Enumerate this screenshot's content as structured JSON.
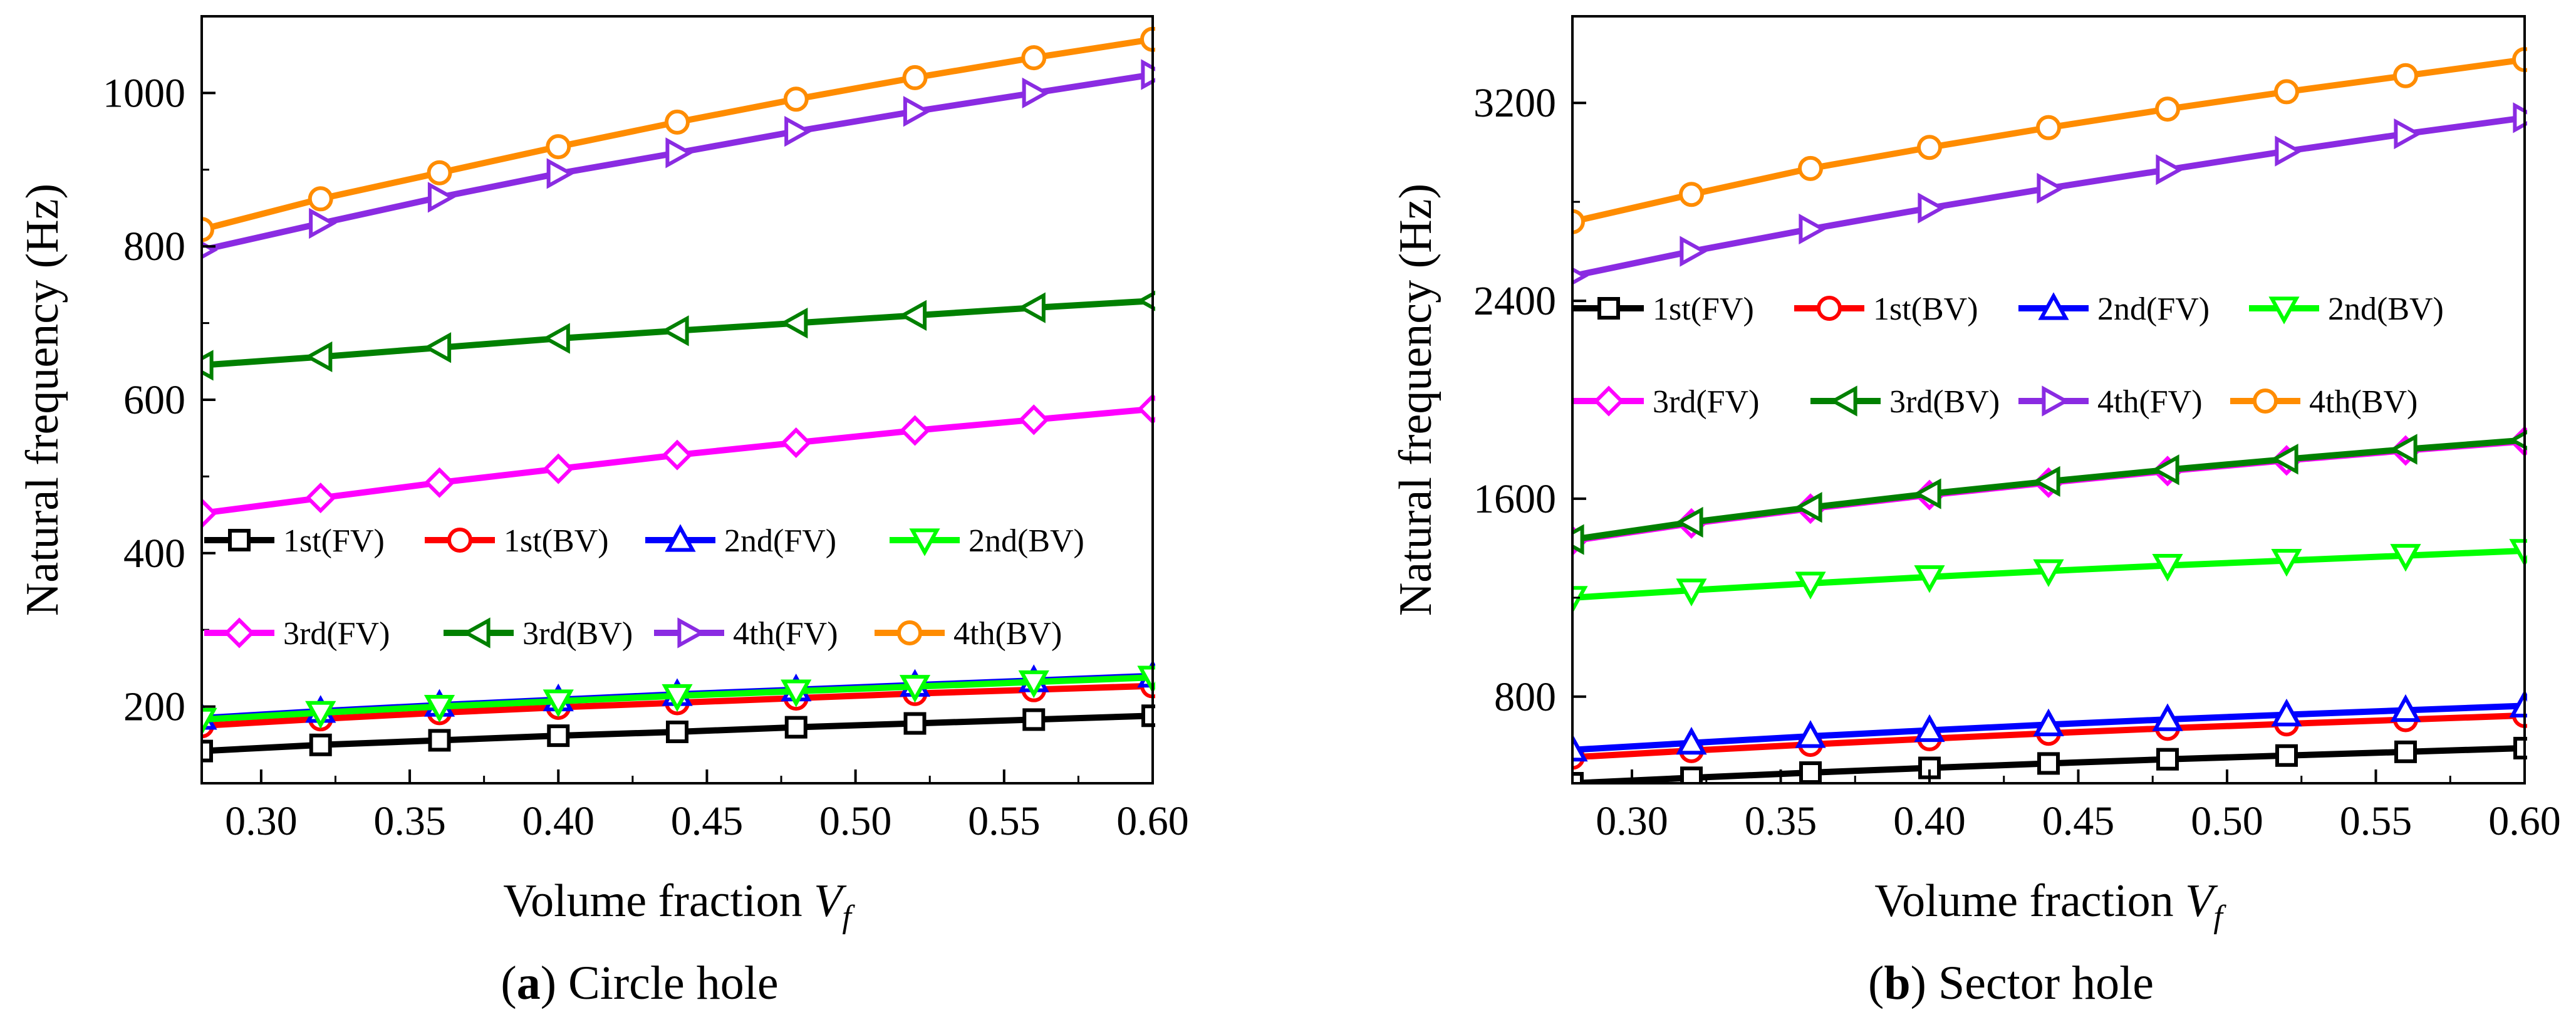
{
  "chart_data": [
    {
      "type": "line",
      "panel": "a",
      "caption_label": "a",
      "caption_text": " Circle hole",
      "xlabel": "Volume fraction ",
      "xlabel_var": "V",
      "xlabel_sub": "f",
      "ylabel": "Natural frequency (Hz)",
      "xlim": [
        0.28,
        0.6
      ],
      "ylim": [
        100,
        1100
      ],
      "xticks": [
        0.3,
        0.35,
        0.4,
        0.45,
        0.5,
        0.55,
        0.6
      ],
      "xtick_labels": [
        "0.30",
        "0.35",
        "0.40",
        "0.45",
        "0.50",
        "0.55",
        "0.60"
      ],
      "yticks": [
        200,
        400,
        600,
        800,
        1000
      ],
      "ytick_labels": [
        "200",
        "400",
        "600",
        "800",
        "1000"
      ],
      "legend_position": "center-bottom",
      "x": [
        0.28,
        0.32,
        0.36,
        0.4,
        0.44,
        0.48,
        0.52,
        0.56,
        0.6
      ],
      "series": [
        {
          "name": "1st(FV)",
          "color": "#000000",
          "marker": "square",
          "values": [
            142,
            150,
            156,
            162,
            167,
            173,
            178,
            183,
            188
          ]
        },
        {
          "name": "1st(BV)",
          "color": "#ff0000",
          "marker": "circle",
          "values": [
            175,
            184,
            192,
            199,
            205,
            211,
            217,
            222,
            227
          ]
        },
        {
          "name": "2nd(FV)",
          "color": "#0000ff",
          "marker": "triangle-up",
          "values": [
            185,
            194,
            202,
            209,
            216,
            222,
            228,
            234,
            240
          ]
        },
        {
          "name": "2nd(BV)",
          "color": "#00ff00",
          "marker": "triangle-down",
          "values": [
            183,
            192,
            200,
            207,
            214,
            220,
            226,
            232,
            238
          ]
        },
        {
          "name": "3rd(FV)",
          "color": "#ff00ff",
          "marker": "diamond",
          "values": [
            452,
            472,
            492,
            510,
            528,
            544,
            560,
            574,
            588
          ]
        },
        {
          "name": "3rd(BV)",
          "color": "#008000",
          "marker": "triangle-left",
          "values": [
            645,
            656,
            668,
            680,
            690,
            700,
            710,
            720,
            729
          ]
        },
        {
          "name": "4th(FV)",
          "color": "#8a2be2",
          "marker": "triangle-right",
          "values": [
            795,
            830,
            864,
            895,
            922,
            950,
            976,
            1000,
            1024
          ]
        },
        {
          "name": "4th(BV)",
          "color": "#ff8c00",
          "marker": "circle",
          "values": [
            822,
            862,
            896,
            930,
            962,
            992,
            1020,
            1046,
            1070
          ]
        }
      ]
    },
    {
      "type": "line",
      "panel": "b",
      "caption_label": "b",
      "caption_text": " Sector hole",
      "xlabel": "Volume fraction ",
      "xlabel_var": "V",
      "xlabel_sub": "f",
      "ylabel": "Natural frequency (Hz)",
      "xlim": [
        0.28,
        0.6
      ],
      "ylim": [
        450,
        3550
      ],
      "xticks": [
        0.3,
        0.35,
        0.4,
        0.45,
        0.5,
        0.55,
        0.6
      ],
      "xtick_labels": [
        "0.30",
        "0.35",
        "0.40",
        "0.45",
        "0.50",
        "0.55",
        "0.60"
      ],
      "yticks": [
        800,
        1600,
        2400,
        3200
      ],
      "ytick_labels": [
        "800",
        "1600",
        "2400",
        "3200"
      ],
      "legend_position": "center-top",
      "x": [
        0.28,
        0.32,
        0.36,
        0.4,
        0.44,
        0.48,
        0.52,
        0.56,
        0.6
      ],
      "series": [
        {
          "name": "1st(FV)",
          "color": "#000000",
          "marker": "square",
          "values": [
            450,
            472,
            493,
            512,
            530,
            547,
            562,
            577,
            592
          ]
        },
        {
          "name": "1st(BV)",
          "color": "#ff0000",
          "marker": "circle",
          "values": [
            555,
            582,
            607,
            630,
            652,
            672,
            690,
            707,
            724
          ]
        },
        {
          "name": "2nd(FV)",
          "color": "#0000ff",
          "marker": "triangle-up",
          "values": [
            585,
            613,
            640,
            664,
            687,
            708,
            727,
            745,
            763
          ]
        },
        {
          "name": "2nd(BV)",
          "color": "#00ff00",
          "marker": "triangle-down",
          "values": [
            1200,
            1230,
            1258,
            1284,
            1308,
            1330,
            1350,
            1370,
            1390
          ]
        },
        {
          "name": "3rd(FV)",
          "color": "#ff00ff",
          "marker": "diamond",
          "values": [
            1430,
            1500,
            1560,
            1615,
            1665,
            1712,
            1755,
            1795,
            1832
          ]
        },
        {
          "name": "3rd(BV)",
          "color": "#008000",
          "marker": "triangle-left",
          "values": [
            1435,
            1505,
            1565,
            1620,
            1670,
            1717,
            1760,
            1800,
            1837
          ]
        },
        {
          "name": "4th(FV)",
          "color": "#8a2be2",
          "marker": "triangle-right",
          "values": [
            2500,
            2600,
            2690,
            2775,
            2855,
            2930,
            3005,
            3075,
            3140
          ]
        },
        {
          "name": "4th(BV)",
          "color": "#ff8c00",
          "marker": "circle",
          "values": [
            2720,
            2830,
            2935,
            3020,
            3100,
            3175,
            3245,
            3310,
            3375
          ]
        }
      ]
    }
  ]
}
